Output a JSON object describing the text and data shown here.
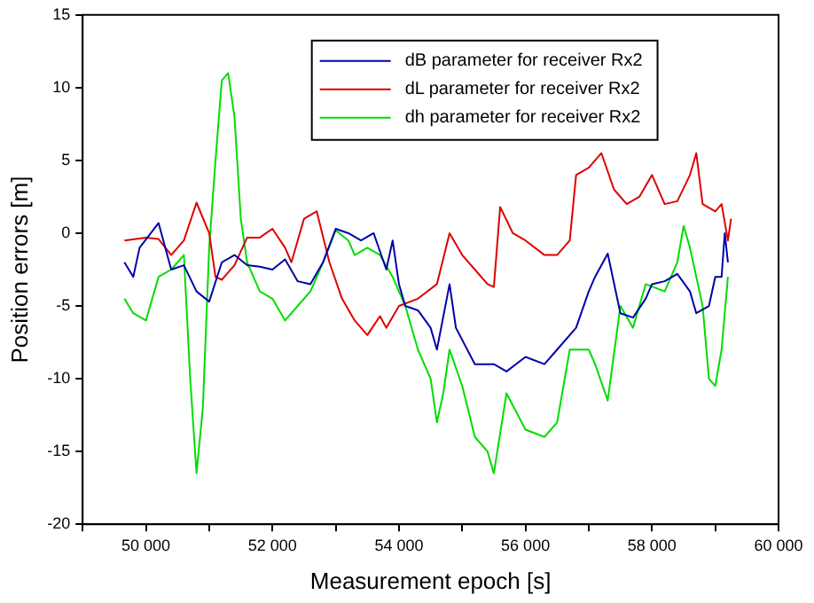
{
  "chart_data": {
    "type": "line",
    "xlabel": "Measurement epoch [s]",
    "ylabel": "Position errors [m]",
    "xlim": [
      49000,
      60000
    ],
    "xticks": [
      {
        "value": 49000,
        "label": null
      },
      {
        "value": 50000,
        "label": "50 000"
      },
      {
        "value": 51000,
        "label": null
      },
      {
        "value": 52000,
        "label": "52 000"
      },
      {
        "value": 53000,
        "label": null
      },
      {
        "value": 54000,
        "label": "54 000"
      },
      {
        "value": 55000,
        "label": null
      },
      {
        "value": 56000,
        "label": "56 000"
      },
      {
        "value": 57000,
        "label": null
      },
      {
        "value": 58000,
        "label": "58 000"
      },
      {
        "value": 59000,
        "label": null
      },
      {
        "value": 60000,
        "label": "60 000"
      }
    ],
    "ylim": [
      -20,
      15
    ],
    "yticks": [
      -20,
      -15,
      -10,
      -5,
      0,
      5,
      10,
      15
    ],
    "grid": false,
    "legend": "top",
    "marker": "none",
    "line_style": "solid",
    "series": [
      {
        "name": "dB parameter for receiver Rx2",
        "color": "#0000aa",
        "x": [
          49660,
          49800,
          49900,
          50200,
          50400,
          50600,
          50800,
          51000,
          51200,
          51400,
          51600,
          51800,
          52000,
          52200,
          52400,
          52600,
          52800,
          53000,
          53200,
          53400,
          53600,
          53800,
          53900,
          54000,
          54100,
          54300,
          54500,
          54600,
          54800,
          54900,
          55200,
          55500,
          55700,
          56000,
          56300,
          56500,
          56800,
          57000,
          57100,
          57300,
          57500,
          57700,
          57900,
          58000,
          58200,
          58400,
          58600,
          58700,
          58900,
          59000,
          59100,
          59150,
          59200
        ],
        "values": [
          -2,
          -3,
          -1,
          0.7,
          -2.5,
          -2.2,
          -4,
          -4.7,
          -2,
          -1.5,
          -2.2,
          -2.3,
          -2.5,
          -1.8,
          -3.3,
          -3.5,
          -2,
          0.3,
          0,
          -0.5,
          0,
          -2.5,
          -0.5,
          -3.5,
          -5,
          -5.3,
          -6.5,
          -8,
          -3.5,
          -6.5,
          -9,
          -9,
          -9.5,
          -8.5,
          -9,
          -8,
          -6.5,
          -4,
          -3,
          -1.4,
          -5.5,
          -5.8,
          -4.5,
          -3.5,
          -3.3,
          -2.8,
          -4,
          -5.5,
          -5,
          -3,
          -3,
          0,
          -2
        ]
      },
      {
        "name": "dL parameter for receiver Rx2",
        "color": "#dd0000",
        "x": [
          49660,
          50000,
          50200,
          50400,
          50600,
          50800,
          51000,
          51100,
          51200,
          51400,
          51600,
          51800,
          52000,
          52200,
          52300,
          52500,
          52700,
          52900,
          53100,
          53300,
          53500,
          53700,
          53800,
          54000,
          54300,
          54600,
          54800,
          55000,
          55200,
          55400,
          55500,
          55600,
          55800,
          56000,
          56300,
          56500,
          56700,
          56800,
          57000,
          57200,
          57400,
          57600,
          57800,
          58000,
          58200,
          58400,
          58600,
          58700,
          58800,
          59000,
          59100,
          59200,
          59250
        ],
        "values": [
          -0.5,
          -0.3,
          -0.4,
          -1.5,
          -0.5,
          2.1,
          0,
          -3,
          -3.2,
          -2.2,
          -0.3,
          -0.3,
          0.3,
          -1,
          -2,
          1,
          1.5,
          -2,
          -4.5,
          -6,
          -7,
          -5.7,
          -6.5,
          -5,
          -4.5,
          -3.5,
          0,
          -1.5,
          -2.5,
          -3.5,
          -3.7,
          1.8,
          0,
          -0.5,
          -1.5,
          -1.5,
          -0.5,
          4,
          4.5,
          5.5,
          3,
          2,
          2.5,
          4,
          2,
          2.2,
          4,
          5.5,
          2,
          1.5,
          2,
          -0.5,
          1
        ]
      },
      {
        "name": "dh parameter for receiver Rx2",
        "color": "#00dd00",
        "x": [
          49660,
          49800,
          50000,
          50200,
          50400,
          50600,
          50700,
          50800,
          50900,
          51000,
          51100,
          51200,
          51300,
          51400,
          51500,
          51600,
          51800,
          52000,
          52200,
          52400,
          52600,
          52800,
          53000,
          53200,
          53300,
          53500,
          53700,
          53900,
          54100,
          54300,
          54500,
          54600,
          54700,
          54800,
          55000,
          55200,
          55400,
          55500,
          55700,
          56000,
          56300,
          56500,
          56700,
          57000,
          57100,
          57300,
          57500,
          57700,
          57900,
          58200,
          58400,
          58500,
          58600,
          58800,
          58900,
          59000,
          59100,
          59200
        ],
        "values": [
          -4.5,
          -5.5,
          -6,
          -3,
          -2.5,
          -1.5,
          -10,
          -16.5,
          -12,
          -1,
          5,
          10.5,
          11,
          8,
          1,
          -2,
          -4,
          -4.5,
          -6,
          -5,
          -4,
          -2,
          0.2,
          -0.5,
          -1.5,
          -1,
          -1.5,
          -3,
          -5,
          -8,
          -10,
          -13,
          -11,
          -8,
          -10.5,
          -14,
          -15,
          -16.5,
          -11,
          -13.5,
          -14,
          -13,
          -8,
          -8,
          -9,
          -11.5,
          -5,
          -6.5,
          -3.5,
          -4,
          -2,
          0.5,
          -1,
          -5,
          -10,
          -10.5,
          -8,
          -3
        ]
      }
    ]
  }
}
